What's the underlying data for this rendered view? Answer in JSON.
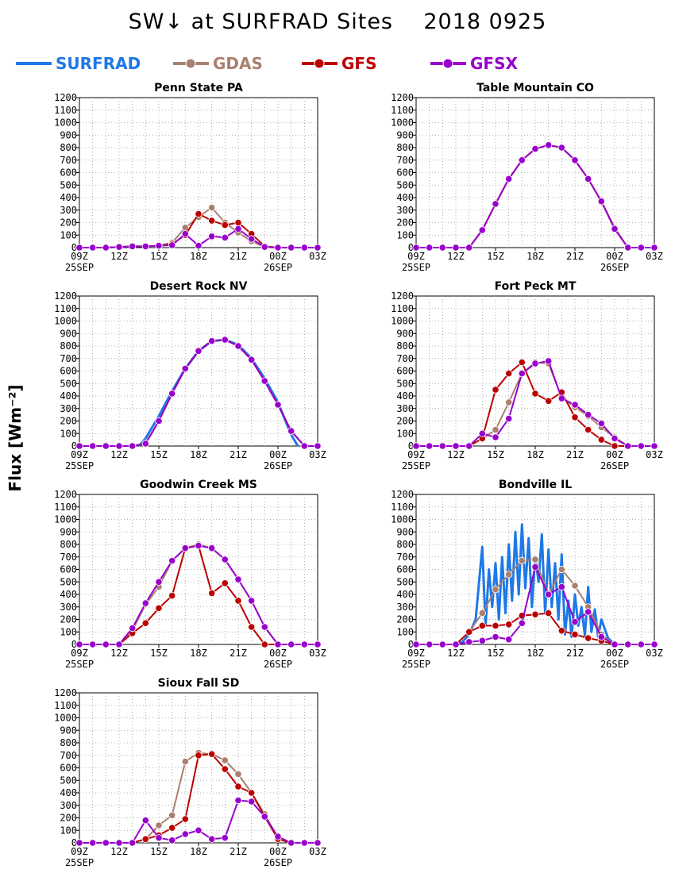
{
  "figure": {
    "title": "SW↓ at SURFRAD Sites    2018 0925",
    "y_axis_title": "Flux [Wm⁻²]",
    "x_ticks": [
      "09Z",
      "12Z",
      "15Z",
      "18Z",
      "21Z",
      "00Z",
      "03Z"
    ],
    "x_tick_hours": [
      9,
      12,
      15,
      18,
      21,
      24,
      27
    ],
    "date_labels": [
      {
        "text": "25SEP",
        "hour": 9
      },
      {
        "text": "26SEP",
        "hour": 24
      }
    ],
    "y_ticks": [
      0,
      100,
      200,
      300,
      400,
      500,
      600,
      700,
      800,
      900,
      1000,
      1100,
      1200
    ],
    "colors": {
      "SURFRAD": "#1e78e6",
      "GDAS": "#aa8070",
      "GFS": "#bb0000",
      "GFSX": "#9900cc"
    },
    "legend": [
      {
        "name": "SURFRAD",
        "color": "#1e78e6",
        "marker": false
      },
      {
        "name": "GDAS",
        "color": "#aa8070",
        "marker": true
      },
      {
        "name": "GFS",
        "color": "#bb0000",
        "marker": true
      },
      {
        "name": "GFSX",
        "color": "#9900cc",
        "marker": true
      }
    ]
  },
  "chart_data": [
    {
      "type": "line",
      "title": "Penn State PA",
      "x": [
        9,
        10,
        11,
        12,
        13,
        14,
        15,
        16,
        17,
        18,
        19,
        20,
        21,
        22,
        23,
        24,
        25,
        26,
        27
      ],
      "xlim": [
        9,
        27
      ],
      "ylim": [
        0,
        1200
      ],
      "grid": true,
      "series": [
        {
          "name": "GDAS",
          "values": [
            0,
            0,
            0,
            5,
            10,
            10,
            15,
            40,
            160,
            245,
            320,
            200,
            120,
            50,
            5,
            0,
            0,
            0,
            0
          ]
        },
        {
          "name": "GFS",
          "values": [
            0,
            0,
            0,
            5,
            10,
            10,
            15,
            30,
            100,
            270,
            215,
            180,
            200,
            110,
            10,
            0,
            0,
            0,
            0
          ]
        },
        {
          "name": "GFSX",
          "values": [
            0,
            0,
            0,
            5,
            10,
            10,
            15,
            20,
            110,
            15,
            90,
            80,
            150,
            70,
            5,
            0,
            0,
            0,
            0
          ]
        }
      ]
    },
    {
      "type": "line",
      "title": "Table Mountain CO",
      "x": [
        9,
        10,
        11,
        12,
        13,
        14,
        15,
        16,
        17,
        18,
        19,
        20,
        21,
        22,
        23,
        24,
        25,
        26,
        27
      ],
      "xlim": [
        9,
        27
      ],
      "ylim": [
        0,
        1200
      ],
      "grid": true,
      "series": [
        {
          "name": "GDAS",
          "values": [
            0,
            0,
            0,
            0,
            0,
            140,
            350,
            550,
            700,
            790,
            820,
            800,
            700,
            550,
            370,
            160,
            0,
            0,
            0
          ]
        },
        {
          "name": "GFS",
          "values": [
            0,
            0,
            0,
            0,
            0,
            140,
            350,
            550,
            700,
            790,
            820,
            800,
            700,
            550,
            370,
            150,
            0,
            0,
            0
          ]
        },
        {
          "name": "GFSX",
          "values": [
            0,
            0,
            0,
            0,
            0,
            140,
            350,
            550,
            700,
            790,
            820,
            800,
            700,
            550,
            370,
            150,
            0,
            0,
            0
          ]
        }
      ]
    },
    {
      "type": "line",
      "title": "Desert Rock NV",
      "x": [
        9,
        10,
        11,
        12,
        13,
        14,
        15,
        16,
        17,
        18,
        19,
        20,
        21,
        22,
        23,
        24,
        25,
        26,
        27
      ],
      "xlim": [
        9,
        27
      ],
      "ylim": [
        0,
        1200
      ],
      "grid": true,
      "series": [
        {
          "name": "SURFRAD",
          "x": [
            13.5,
            14,
            15,
            16,
            17,
            18,
            19,
            20,
            21,
            22,
            23,
            24,
            25,
            25.5
          ],
          "values": [
            0,
            60,
            240,
            440,
            620,
            760,
            840,
            850,
            810,
            700,
            540,
            350,
            90,
            0
          ]
        },
        {
          "name": "GDAS",
          "values": [
            0,
            0,
            0,
            0,
            0,
            20,
            200,
            420,
            620,
            760,
            840,
            850,
            800,
            690,
            520,
            330,
            120,
            0,
            0
          ]
        },
        {
          "name": "GFS",
          "values": [
            0,
            0,
            0,
            0,
            0,
            20,
            200,
            420,
            620,
            760,
            840,
            850,
            800,
            690,
            520,
            330,
            120,
            0,
            0
          ]
        },
        {
          "name": "GFSX",
          "values": [
            0,
            0,
            0,
            0,
            0,
            20,
            200,
            420,
            620,
            760,
            840,
            850,
            800,
            690,
            520,
            330,
            120,
            0,
            0
          ]
        }
      ]
    },
    {
      "type": "line",
      "title": "Fort Peck MT",
      "x": [
        9,
        10,
        11,
        12,
        13,
        14,
        15,
        16,
        17,
        18,
        19,
        20,
        21,
        22,
        23,
        24,
        25,
        26,
        27
      ],
      "xlim": [
        9,
        27
      ],
      "ylim": [
        0,
        1200
      ],
      "grid": true,
      "series": [
        {
          "name": "GDAS",
          "values": [
            0,
            0,
            0,
            0,
            0,
            60,
            130,
            350,
            580,
            670,
            660,
            390,
            310,
            240,
            150,
            70,
            0,
            0,
            0
          ]
        },
        {
          "name": "GFS",
          "values": [
            0,
            0,
            0,
            0,
            0,
            60,
            450,
            580,
            670,
            420,
            360,
            430,
            230,
            130,
            50,
            0,
            0,
            0,
            0
          ]
        },
        {
          "name": "GFSX",
          "values": [
            0,
            0,
            0,
            0,
            0,
            100,
            70,
            220,
            580,
            660,
            680,
            380,
            330,
            250,
            180,
            60,
            0,
            0,
            0
          ]
        }
      ]
    },
    {
      "type": "line",
      "title": "Goodwin Creek MS",
      "x": [
        9,
        10,
        11,
        12,
        13,
        14,
        15,
        16,
        17,
        18,
        19,
        20,
        21,
        22,
        23,
        24,
        25,
        26,
        27
      ],
      "xlim": [
        9,
        27
      ],
      "ylim": [
        0,
        1200
      ],
      "grid": true,
      "series": [
        {
          "name": "GDAS",
          "values": [
            0,
            0,
            0,
            0,
            110,
            320,
            460,
            670,
            770,
            800,
            770,
            680,
            520,
            350,
            140,
            0,
            0,
            0,
            0
          ]
        },
        {
          "name": "GFS",
          "values": [
            0,
            0,
            0,
            0,
            90,
            170,
            290,
            390,
            770,
            790,
            410,
            490,
            350,
            140,
            0,
            0,
            0,
            0,
            0
          ]
        },
        {
          "name": "GFSX",
          "values": [
            0,
            0,
            0,
            0,
            130,
            330,
            500,
            670,
            770,
            790,
            770,
            680,
            520,
            350,
            140,
            0,
            0,
            0,
            0
          ]
        }
      ]
    },
    {
      "type": "line",
      "title": "Bondville IL",
      "x": [
        9,
        10,
        11,
        12,
        13,
        14,
        15,
        16,
        17,
        18,
        19,
        20,
        21,
        22,
        23,
        24,
        25,
        26,
        27
      ],
      "xlim": [
        9,
        27
      ],
      "ylim": [
        0,
        1200
      ],
      "grid": true,
      "series": [
        {
          "name": "SURFRAD",
          "x": [
            12,
            12.5,
            13,
            13.5,
            14,
            14.25,
            14.5,
            14.75,
            15,
            15.25,
            15.5,
            15.75,
            16,
            16.25,
            16.5,
            16.75,
            17,
            17.25,
            17.5,
            17.75,
            18,
            18.25,
            18.5,
            18.75,
            19,
            19.25,
            19.5,
            19.75,
            20,
            20.25,
            20.5,
            20.75,
            21,
            21.25,
            21.5,
            21.75,
            22,
            22.25,
            22.5,
            22.75,
            23,
            23.5,
            24
          ],
          "values": [
            0,
            20,
            80,
            200,
            780,
            150,
            600,
            300,
            650,
            200,
            700,
            250,
            800,
            350,
            900,
            400,
            960,
            450,
            850,
            300,
            700,
            500,
            880,
            250,
            760,
            300,
            650,
            200,
            720,
            80,
            350,
            60,
            400,
            150,
            300,
            70,
            460,
            100,
            280,
            60,
            200,
            50,
            0
          ]
        },
        {
          "name": "GDAS",
          "values": [
            0,
            0,
            0,
            0,
            100,
            250,
            440,
            560,
            670,
            680,
            400,
            600,
            470,
            300,
            80,
            0,
            0,
            0,
            0
          ]
        },
        {
          "name": "GFS",
          "values": [
            0,
            0,
            0,
            0,
            100,
            150,
            150,
            160,
            230,
            240,
            250,
            110,
            80,
            50,
            30,
            0,
            0,
            0,
            0
          ]
        },
        {
          "name": "GFSX",
          "values": [
            0,
            0,
            0,
            0,
            20,
            30,
            60,
            40,
            170,
            620,
            400,
            460,
            180,
            260,
            60,
            0,
            0,
            0,
            0
          ]
        }
      ]
    },
    {
      "type": "line",
      "title": "Sioux Fall SD",
      "x": [
        9,
        10,
        11,
        12,
        13,
        14,
        15,
        16,
        17,
        18,
        19,
        20,
        21,
        22,
        23,
        24,
        25,
        26,
        27
      ],
      "xlim": [
        9,
        27
      ],
      "ylim": [
        0,
        1200
      ],
      "grid": true,
      "series": [
        {
          "name": "GDAS",
          "values": [
            0,
            0,
            0,
            0,
            0,
            30,
            140,
            220,
            650,
            720,
            710,
            660,
            550,
            400,
            230,
            40,
            0,
            0,
            0
          ]
        },
        {
          "name": "GFS",
          "values": [
            0,
            0,
            0,
            0,
            0,
            30,
            60,
            120,
            190,
            700,
            710,
            590,
            450,
            400,
            210,
            30,
            0,
            0,
            0
          ]
        },
        {
          "name": "GFSX",
          "values": [
            0,
            0,
            0,
            0,
            0,
            180,
            40,
            20,
            70,
            100,
            30,
            40,
            340,
            330,
            210,
            50,
            0,
            0,
            0
          ]
        }
      ]
    }
  ]
}
